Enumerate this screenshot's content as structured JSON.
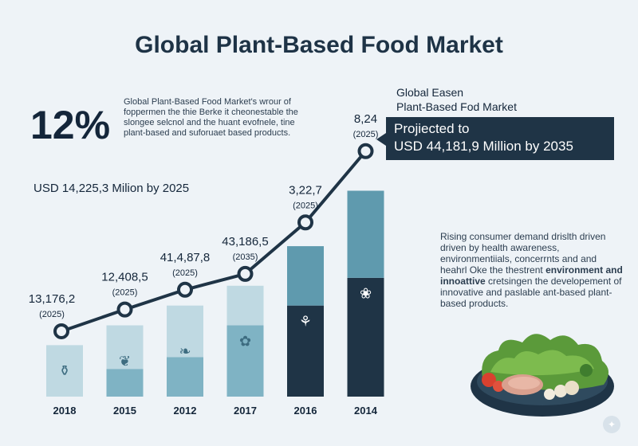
{
  "title": "Global Plant-Based Food Market",
  "headline": {
    "percent": "12%",
    "description": "Global Plant-Based Food Market's wrour of foppermen the thie Berke it cheonestable the slongee selcnol and the huant evofnele, tine plant-based and suforuaet based products.",
    "usd": "USD 14,225,3 Milion by 2025"
  },
  "projection": {
    "title_line1": "Global Easen",
    "title_line2": "Plant-Based Fod Market",
    "box_line1": "Projiected to",
    "box_line2": "USD 44,181,9 Million by 2035"
  },
  "right_text": {
    "line1": "Rising consumer demand drislth driven driven by health awareness, environmentiials, concerrnts and and heahrl Oke the thestrent",
    "line2_bold": "environment and innoattive",
    "line3": "cretsingen the developement of innovative and paslable ant-based plant-based products."
  },
  "colors": {
    "bar_light": "#bfd9e2",
    "bar_mid": "#7fb3c4",
    "bar_teal": "#5f9aae",
    "bar_dark": "#1f3446",
    "line": "#1f3446",
    "marker_fill": "#eef3f7"
  },
  "chart_data": {
    "type": "bar",
    "categories": [
      "2018",
      "2015",
      "2012",
      "2017",
      "2016",
      "2014"
    ],
    "values": [
      13,
      18,
      23,
      28,
      38,
      52
    ],
    "segments": [
      {
        "light": 13,
        "mid": 0,
        "dark": 0
      },
      {
        "light": 11,
        "mid": 7,
        "dark": 0
      },
      {
        "light": 13,
        "mid": 10,
        "dark": 0
      },
      {
        "light": 10,
        "mid": 18,
        "dark": 0
      },
      {
        "light": 0,
        "mid": 15,
        "dark": 23
      },
      {
        "light": 0,
        "mid": 22,
        "dark": 30
      }
    ],
    "line_values": [
      16.5,
      22,
      27,
      31,
      44,
      62
    ],
    "point_labels": [
      {
        "value": "13,176,2",
        "year": "(2025)"
      },
      {
        "value": "12,408,5",
        "year": "(2025)"
      },
      {
        "value": "41,4,87,8",
        "year": "(2025)"
      },
      {
        "value": "43,186,5",
        "year": "(2035)"
      },
      {
        "value": "3,22,7",
        "year": "(2025)"
      },
      {
        "value": "8,24",
        "year": "(2025)"
      }
    ],
    "bar_icons": [
      "bottle-icon",
      "sprout-icon",
      "leaf-icon",
      "broccoli-icon",
      "carrot-icon",
      "apple-icon"
    ],
    "ylim": [
      0,
      70
    ],
    "grid": false,
    "legend": "none"
  }
}
